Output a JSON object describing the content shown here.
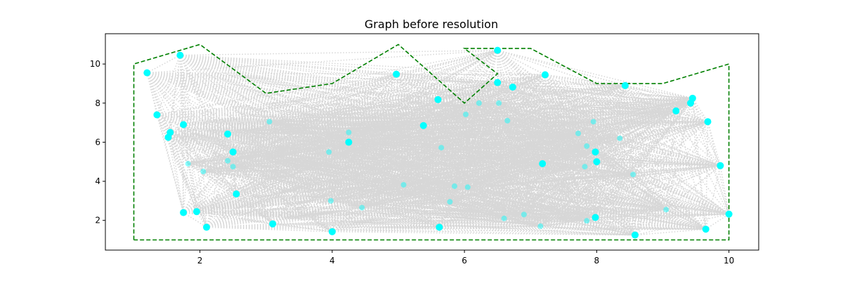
{
  "chart_data": {
    "type": "scatter",
    "title": "Graph before resolution",
    "xlabel": "",
    "ylabel": "",
    "xlim": [
      0.57,
      10.45
    ],
    "ylim": [
      0.48,
      11.55
    ],
    "xticks": [
      2,
      4,
      6,
      8,
      10
    ],
    "yticks": [
      2,
      4,
      6,
      8,
      10
    ],
    "grid": false,
    "colors": {
      "points": "#00ffff",
      "edges": "#d3d3d3",
      "boundary": "#008000"
    },
    "boundary": [
      [
        1,
        1
      ],
      [
        1,
        10
      ],
      [
        2,
        11
      ],
      [
        3,
        8.5
      ],
      [
        4,
        9
      ],
      [
        5,
        11
      ],
      [
        6,
        8
      ],
      [
        6.5,
        9.5
      ],
      [
        6,
        10.8
      ],
      [
        7,
        10.8
      ],
      [
        8,
        9
      ],
      [
        9,
        9
      ],
      [
        10,
        10
      ],
      [
        10,
        1
      ],
      [
        1,
        1
      ]
    ],
    "points": [
      [
        1.2,
        9.55
      ],
      [
        1.7,
        10.45
      ],
      [
        1.35,
        7.4
      ],
      [
        1.55,
        6.5
      ],
      [
        1.52,
        6.25
      ],
      [
        1.75,
        6.9
      ],
      [
        1.75,
        2.4
      ],
      [
        1.95,
        2.45
      ],
      [
        2.1,
        1.65
      ],
      [
        2.42,
        6.42
      ],
      [
        2.5,
        5.5
      ],
      [
        2.55,
        3.35
      ],
      [
        3.1,
        1.82
      ],
      [
        4.0,
        1.42
      ],
      [
        4.25,
        6.0
      ],
      [
        4.97,
        9.48
      ],
      [
        5.38,
        6.85
      ],
      [
        5.6,
        8.18
      ],
      [
        5.62,
        1.65
      ],
      [
        6.5,
        10.7
      ],
      [
        6.5,
        9.05
      ],
      [
        6.73,
        8.82
      ],
      [
        7.22,
        9.45
      ],
      [
        7.18,
        4.9
      ],
      [
        7.98,
        5.5
      ],
      [
        8.0,
        5.0
      ],
      [
        7.98,
        2.15
      ],
      [
        8.43,
        8.9
      ],
      [
        8.58,
        1.25
      ],
      [
        9.2,
        7.6
      ],
      [
        9.45,
        8.25
      ],
      [
        9.42,
        8.0
      ],
      [
        9.68,
        7.05
      ],
      [
        9.87,
        4.8
      ],
      [
        9.65,
        1.55
      ],
      [
        10.0,
        2.32
      ]
    ],
    "faint_points": [
      [
        1.82,
        4.9
      ],
      [
        2.05,
        4.5
      ],
      [
        2.42,
        5.05
      ],
      [
        2.5,
        4.75
      ],
      [
        3.95,
        5.5
      ],
      [
        3.98,
        3.0
      ],
      [
        4.45,
        2.65
      ],
      [
        4.25,
        6.5
      ],
      [
        5.08,
        3.82
      ],
      [
        5.65,
        5.72
      ],
      [
        5.85,
        3.75
      ],
      [
        6.05,
        3.7
      ],
      [
        5.78,
        2.95
      ],
      [
        6.22,
        8.0
      ],
      [
        6.02,
        7.42
      ],
      [
        6.52,
        8.0
      ],
      [
        6.65,
        7.1
      ],
      [
        6.6,
        2.1
      ],
      [
        6.9,
        2.3
      ],
      [
        7.15,
        1.7
      ],
      [
        7.72,
        6.45
      ],
      [
        7.95,
        7.05
      ],
      [
        7.85,
        5.8
      ],
      [
        7.82,
        4.75
      ],
      [
        7.85,
        1.98
      ],
      [
        8.35,
        6.2
      ],
      [
        8.55,
        4.35
      ],
      [
        9.05,
        2.55
      ],
      [
        3.05,
        7.05
      ]
    ]
  }
}
